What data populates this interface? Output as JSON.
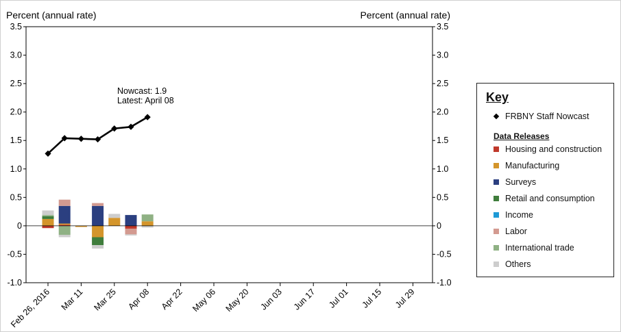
{
  "chart_data": {
    "type": "bar",
    "left_axis_label": "Percent (annual rate)",
    "right_axis_label": "Percent (annual rate)",
    "ylim": [
      -1.0,
      3.5
    ],
    "yticks": [
      "3.5",
      "3.0",
      "2.5",
      "2.0",
      "1.5",
      "1.0",
      "0.5",
      "0",
      "-0.5",
      "-1.0"
    ],
    "ytick_values": [
      3.5,
      3.0,
      2.5,
      2.0,
      1.5,
      1.0,
      0.5,
      0,
      -0.5,
      -1.0
    ],
    "xticks": [
      "Feb 26, 2016",
      "Mar 11",
      "Mar 25",
      "Apr 08",
      "Apr 22",
      "May 06",
      "May 20",
      "Jun 03",
      "Jun 17",
      "Jul 01",
      "Jul 15",
      "Jul 29"
    ],
    "x_dates": [
      "2016-02-26",
      "2016-03-04",
      "2016-03-11",
      "2016-03-18",
      "2016-03-25",
      "2016-04-01",
      "2016-04-08"
    ],
    "nowcast_line": {
      "name": "FRBNY Staff Nowcast",
      "values": [
        1.27,
        1.54,
        1.53,
        1.52,
        1.71,
        1.74,
        1.91
      ]
    },
    "stacked_bars": [
      {
        "date": "2016-02-26",
        "segments": [
          {
            "category": "Housing and construction",
            "value": -0.04
          },
          {
            "category": "Manufacturing",
            "value": 0.12
          },
          {
            "category": "Retail and consumption",
            "value": 0.05
          },
          {
            "category": "International trade",
            "value": 0.02
          },
          {
            "category": "Others",
            "value": 0.08
          }
        ]
      },
      {
        "date": "2016-03-04",
        "segments": [
          {
            "category": "Housing and construction",
            "value": 0.02
          },
          {
            "category": "Manufacturing",
            "value": 0.02
          },
          {
            "category": "Surveys",
            "value": 0.31
          },
          {
            "category": "Labor",
            "value": 0.11
          },
          {
            "category": "International trade",
            "value": -0.16
          },
          {
            "category": "Others",
            "value": -0.04
          }
        ]
      },
      {
        "date": "2016-03-11",
        "segments": [
          {
            "category": "Manufacturing",
            "value": -0.02
          }
        ]
      },
      {
        "date": "2016-03-18",
        "segments": [
          {
            "category": "Surveys",
            "value": 0.35
          },
          {
            "category": "Labor",
            "value": 0.05
          },
          {
            "category": "Manufacturing",
            "value": -0.2
          },
          {
            "category": "Retail and consumption",
            "value": -0.14
          },
          {
            "category": "Others",
            "value": -0.06
          }
        ]
      },
      {
        "date": "2016-03-25",
        "segments": [
          {
            "category": "Manufacturing",
            "value": 0.14
          },
          {
            "category": "Others",
            "value": 0.07
          }
        ]
      },
      {
        "date": "2016-04-01",
        "segments": [
          {
            "category": "Surveys",
            "value": 0.19
          },
          {
            "category": "Housing and construction",
            "value": -0.05
          },
          {
            "category": "Labor",
            "value": -0.1
          },
          {
            "category": "Others",
            "value": -0.02
          }
        ]
      },
      {
        "date": "2016-04-08",
        "segments": [
          {
            "category": "Manufacturing",
            "value": 0.08
          },
          {
            "category": "International trade",
            "value": 0.12
          },
          {
            "category": "Others",
            "value": -0.03
          }
        ]
      }
    ],
    "annotation": {
      "line1": "Nowcast:  1.9",
      "line2": "Latest: April 08"
    },
    "legend_position": "right",
    "grid": false
  },
  "key": {
    "title": "Key",
    "nowcast_label": "FRBNY Staff Nowcast",
    "releases_title": "Data Releases",
    "items": [
      {
        "label": "Housing and construction",
        "color": "#c0392b"
      },
      {
        "label": "Manufacturing",
        "color": "#d4952b"
      },
      {
        "label": "Surveys",
        "color": "#2b3f80"
      },
      {
        "label": "Retail and consumption",
        "color": "#3f7d3c"
      },
      {
        "label": "Income",
        "color": "#1e9ad6"
      },
      {
        "label": "Labor",
        "color": "#d39a90"
      },
      {
        "label": "International trade",
        "color": "#8fb184"
      },
      {
        "label": "Others",
        "color": "#cdcdcd"
      }
    ]
  }
}
